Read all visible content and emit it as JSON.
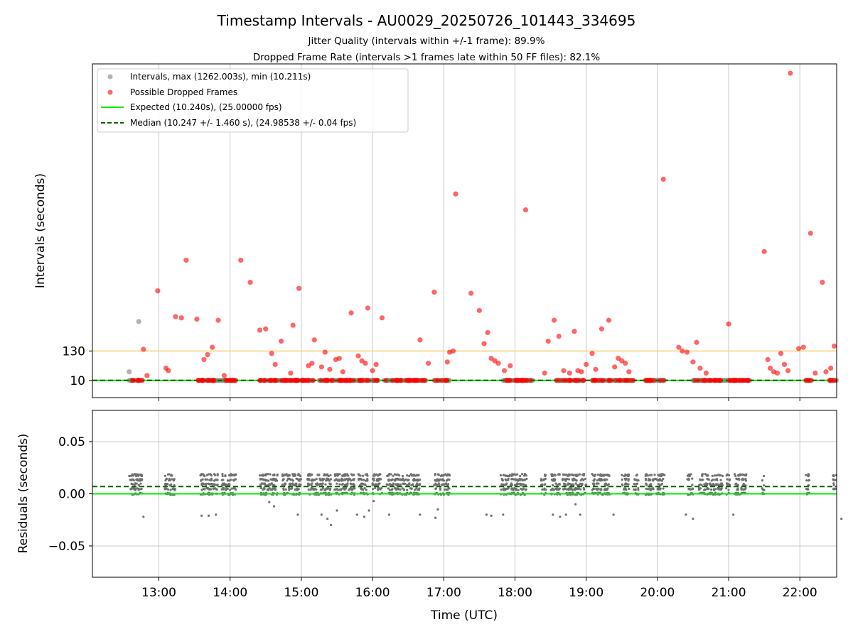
{
  "figure": {
    "title": "Timestamp Intervals - AU0029_20250726_101443_334695",
    "subtitle_1": "Jitter Quality (intervals within +/-1 frame): 89.9%",
    "subtitle_2": "Dropped Frame Rate (intervals >1 frames late within 50 FF files): 82.1%",
    "colors": {
      "interval_points": "#808080",
      "dropped_points": "#ff0000",
      "expected_line": "#00ee00",
      "median_line": "#006400",
      "threshold_line": "#f5d27a",
      "grid": "#c8c8c8",
      "residual_points": "#707070"
    }
  },
  "chart_data": [
    {
      "type": "scatter",
      "ylabel": "Intervals (seconds)",
      "x_axis_type": "time (hours UTC)",
      "xlim": [
        "12:04",
        "22:31"
      ],
      "ylim": [
        -60,
        1300
      ],
      "yticks": [
        10,
        130
      ],
      "ytick_labels": [
        "10",
        "130"
      ],
      "xticks_shared": [
        "13:00",
        "14:00",
        "15:00",
        "16:00",
        "17:00",
        "18:00",
        "19:00",
        "20:00",
        "21:00",
        "22:00"
      ],
      "grid": "x only",
      "legend_position": "upper-left",
      "legend": [
        "Intervals, max (1262.003s), min (10.211s)",
        "Possible Dropped Frames",
        "Expected (10.240s), (25.00000 fps)",
        "Median (10.247 +/- 1.460 s), (24.98538 +/- 0.04 fps)"
      ],
      "expected_value": 10.24,
      "median_value": 10.247,
      "threshold_value": 130,
      "interval_spans": [
        [
          "12:35",
          "12:46"
        ],
        [
          "13:33",
          "14:05"
        ],
        [
          "14:25",
          "15:10"
        ],
        [
          "15:15",
          "16:05"
        ],
        [
          "16:10",
          "16:45"
        ],
        [
          "16:52",
          "17:05"
        ],
        [
          "17:50",
          "18:15"
        ],
        [
          "18:35",
          "18:58"
        ],
        [
          "19:05",
          "19:40"
        ],
        [
          "19:50",
          "20:06"
        ],
        [
          "20:30",
          "21:18"
        ],
        [
          "22:05",
          "22:10"
        ],
        [
          "22:25",
          "22:31"
        ]
      ],
      "interval_outliers": [
        {
          "x": "12:35",
          "y": 45
        },
        {
          "x": "12:43",
          "y": 250
        }
      ],
      "dropped_frames": [
        {
          "x": "12:47",
          "y": 137
        },
        {
          "x": "12:50",
          "y": 30
        },
        {
          "x": "12:59",
          "y": 375
        },
        {
          "x": "13:06",
          "y": 60
        },
        {
          "x": "13:08",
          "y": 50
        },
        {
          "x": "13:14",
          "y": 270
        },
        {
          "x": "13:19",
          "y": 265
        },
        {
          "x": "13:23",
          "y": 500
        },
        {
          "x": "13:32",
          "y": 260
        },
        {
          "x": "13:38",
          "y": 95
        },
        {
          "x": "13:41",
          "y": 115
        },
        {
          "x": "13:45",
          "y": 145
        },
        {
          "x": "13:50",
          "y": 255
        },
        {
          "x": "13:55",
          "y": 30
        },
        {
          "x": "14:09",
          "y": 500
        },
        {
          "x": "14:17",
          "y": 410
        },
        {
          "x": "14:25",
          "y": 215
        },
        {
          "x": "14:30",
          "y": 220
        },
        {
          "x": "14:35",
          "y": 120
        },
        {
          "x": "14:38",
          "y": 75
        },
        {
          "x": "14:43",
          "y": 170
        },
        {
          "x": "14:51",
          "y": 40
        },
        {
          "x": "14:53",
          "y": 235
        },
        {
          "x": "14:58",
          "y": 385
        },
        {
          "x": "15:06",
          "y": 70
        },
        {
          "x": "15:09",
          "y": 80
        },
        {
          "x": "15:11",
          "y": 175
        },
        {
          "x": "15:17",
          "y": 65
        },
        {
          "x": "15:20",
          "y": 125
        },
        {
          "x": "15:24",
          "y": 55
        },
        {
          "x": "15:29",
          "y": 95
        },
        {
          "x": "15:32",
          "y": 100
        },
        {
          "x": "15:35",
          "y": 45
        },
        {
          "x": "15:42",
          "y": 285
        },
        {
          "x": "15:48",
          "y": 110
        },
        {
          "x": "15:51",
          "y": 90
        },
        {
          "x": "15:54",
          "y": 80
        },
        {
          "x": "15:56",
          "y": 305
        },
        {
          "x": "16:00",
          "y": 50
        },
        {
          "x": "16:03",
          "y": 75
        },
        {
          "x": "16:08",
          "y": 265
        },
        {
          "x": "16:40",
          "y": 175
        },
        {
          "x": "16:47",
          "y": 80
        },
        {
          "x": "16:52",
          "y": 370
        },
        {
          "x": "17:03",
          "y": 85
        },
        {
          "x": "17:05",
          "y": 125
        },
        {
          "x": "17:08",
          "y": 130
        },
        {
          "x": "17:10",
          "y": 770
        },
        {
          "x": "17:23",
          "y": 365
        },
        {
          "x": "17:30",
          "y": 295
        },
        {
          "x": "17:34",
          "y": 160
        },
        {
          "x": "17:37",
          "y": 205
        },
        {
          "x": "17:40",
          "y": 100
        },
        {
          "x": "17:43",
          "y": 90
        },
        {
          "x": "17:46",
          "y": 80
        },
        {
          "x": "17:51",
          "y": 50
        },
        {
          "x": "17:56",
          "y": 70
        },
        {
          "x": "18:09",
          "y": 705
        },
        {
          "x": "18:25",
          "y": 40
        },
        {
          "x": "18:28",
          "y": 170
        },
        {
          "x": "18:33",
          "y": 255
        },
        {
          "x": "18:37",
          "y": 190
        },
        {
          "x": "18:41",
          "y": 50
        },
        {
          "x": "18:46",
          "y": 40
        },
        {
          "x": "18:50",
          "y": 210
        },
        {
          "x": "18:53",
          "y": 50
        },
        {
          "x": "18:56",
          "y": 45
        },
        {
          "x": "19:00",
          "y": 75
        },
        {
          "x": "19:05",
          "y": 120
        },
        {
          "x": "19:08",
          "y": 55
        },
        {
          "x": "19:13",
          "y": 220
        },
        {
          "x": "19:19",
          "y": 255
        },
        {
          "x": "19:24",
          "y": 65
        },
        {
          "x": "19:27",
          "y": 100
        },
        {
          "x": "19:30",
          "y": 90
        },
        {
          "x": "19:33",
          "y": 80
        },
        {
          "x": "19:36",
          "y": 45
        },
        {
          "x": "20:05",
          "y": 830
        },
        {
          "x": "20:18",
          "y": 145
        },
        {
          "x": "20:21",
          "y": 130
        },
        {
          "x": "20:25",
          "y": 125
        },
        {
          "x": "20:30",
          "y": 85
        },
        {
          "x": "20:33",
          "y": 165
        },
        {
          "x": "20:36",
          "y": 60
        },
        {
          "x": "20:41",
          "y": 40
        },
        {
          "x": "21:00",
          "y": 240
        },
        {
          "x": "21:30",
          "y": 535
        },
        {
          "x": "21:33",
          "y": 95
        },
        {
          "x": "21:35",
          "y": 60
        },
        {
          "x": "21:38",
          "y": 45
        },
        {
          "x": "21:41",
          "y": 40
        },
        {
          "x": "21:44",
          "y": 120
        },
        {
          "x": "21:47",
          "y": 75
        },
        {
          "x": "21:50",
          "y": 50
        },
        {
          "x": "21:52",
          "y": 1262
        },
        {
          "x": "21:59",
          "y": 140
        },
        {
          "x": "22:03",
          "y": 145
        },
        {
          "x": "22:09",
          "y": 610
        },
        {
          "x": "22:13",
          "y": 40
        },
        {
          "x": "22:19",
          "y": 410
        },
        {
          "x": "22:22",
          "y": 45
        },
        {
          "x": "22:26",
          "y": 60
        },
        {
          "x": "22:29",
          "y": 150
        }
      ]
    },
    {
      "type": "scatter",
      "xlabel": "Time (UTC)",
      "ylabel": "Residuals (seconds)",
      "xlim": [
        "12:04",
        "22:31"
      ],
      "ylim": [
        -0.08,
        0.08
      ],
      "yticks": [
        0.05,
        0.0,
        -0.05
      ],
      "ytick_labels": [
        "0.05",
        "0.00",
        "−0.05"
      ],
      "xticks": [
        "13:00",
        "14:00",
        "15:00",
        "16:00",
        "17:00",
        "18:00",
        "19:00",
        "20:00",
        "21:00",
        "22:00"
      ],
      "grid": "both",
      "expected_residual": 0.0,
      "median_residual": 0.007,
      "residual_band": [
        0.0,
        0.018
      ],
      "residual_spans": [
        [
          "12:35",
          "12:46"
        ],
        [
          "13:05",
          "13:14"
        ],
        [
          "13:35",
          "13:50"
        ],
        [
          "13:53",
          "14:05"
        ],
        [
          "14:25",
          "14:40"
        ],
        [
          "14:44",
          "14:50"
        ],
        [
          "14:50",
          "15:00"
        ],
        [
          "15:05",
          "15:15"
        ],
        [
          "15:15",
          "15:25"
        ],
        [
          "15:28",
          "15:45"
        ],
        [
          "15:48",
          "15:56"
        ],
        [
          "16:00",
          "16:08"
        ],
        [
          "16:12",
          "16:40"
        ],
        [
          "16:52",
          "17:05"
        ],
        [
          "17:48",
          "18:10"
        ],
        [
          "18:22",
          "18:26"
        ],
        [
          "18:30",
          "18:38"
        ],
        [
          "18:40",
          "19:00"
        ],
        [
          "19:05",
          "19:20"
        ],
        [
          "19:30",
          "19:36"
        ],
        [
          "19:40",
          "19:44"
        ],
        [
          "19:50",
          "20:06"
        ],
        [
          "20:25",
          "20:30"
        ],
        [
          "20:35",
          "20:55"
        ],
        [
          "20:58",
          "21:01"
        ],
        [
          "21:05",
          "21:15"
        ],
        [
          "21:28",
          "21:30"
        ],
        [
          "22:05",
          "22:08"
        ],
        [
          "22:28",
          "22:31"
        ]
      ],
      "residual_outliers": [
        {
          "x": "12:47",
          "y": -0.022
        },
        {
          "x": "13:36",
          "y": -0.021
        },
        {
          "x": "13:42",
          "y": -0.021
        },
        {
          "x": "13:48",
          "y": -0.02
        },
        {
          "x": "14:33",
          "y": -0.008
        },
        {
          "x": "14:37",
          "y": -0.012
        },
        {
          "x": "14:57",
          "y": -0.02
        },
        {
          "x": "15:17",
          "y": -0.02
        },
        {
          "x": "15:22",
          "y": -0.024
        },
        {
          "x": "15:25",
          "y": -0.03
        },
        {
          "x": "15:30",
          "y": -0.016
        },
        {
          "x": "15:47",
          "y": -0.02
        },
        {
          "x": "15:53",
          "y": -0.022
        },
        {
          "x": "15:57",
          "y": -0.016
        },
        {
          "x": "16:01",
          "y": -0.007
        },
        {
          "x": "16:14",
          "y": -0.02
        },
        {
          "x": "16:40",
          "y": -0.02
        },
        {
          "x": "16:53",
          "y": -0.023
        },
        {
          "x": "16:55",
          "y": -0.015
        },
        {
          "x": "17:36",
          "y": -0.02
        },
        {
          "x": "17:40",
          "y": -0.021
        },
        {
          "x": "17:50",
          "y": -0.02
        },
        {
          "x": "18:32",
          "y": -0.02
        },
        {
          "x": "18:38",
          "y": -0.022
        },
        {
          "x": "18:43",
          "y": -0.02
        },
        {
          "x": "18:51",
          "y": -0.01
        },
        {
          "x": "18:55",
          "y": -0.02
        },
        {
          "x": "19:23",
          "y": -0.02
        },
        {
          "x": "20:24",
          "y": -0.02
        },
        {
          "x": "20:30",
          "y": -0.024
        },
        {
          "x": "21:04",
          "y": -0.02
        },
        {
          "x": "22:35",
          "y": -0.024
        }
      ]
    }
  ]
}
